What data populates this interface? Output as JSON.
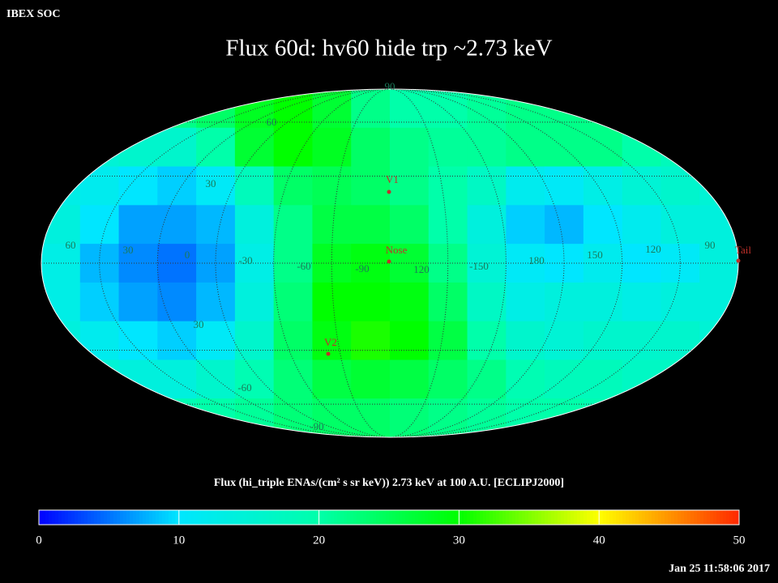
{
  "header": {
    "source": "IBEX SOC",
    "title": "Flux   60d: hv60 hide trp ~2.73 keV",
    "timestamp": "Jan 25 11:58:06 2017"
  },
  "map": {
    "grid_labels": [
      "90",
      "60",
      "30",
      "60",
      "30",
      "0",
      "-30",
      "-60",
      "-90",
      "120",
      "-150",
      "180",
      "150",
      "120",
      "90",
      "30",
      "-60",
      "-90"
    ],
    "markers": [
      "V1",
      "Nose",
      "V2",
      "Tail"
    ],
    "flux": [
      [
        20,
        20,
        20,
        22,
        24,
        28,
        30,
        27,
        22,
        20,
        20,
        21,
        22,
        22,
        22,
        21,
        20,
        20
      ],
      [
        15,
        15,
        16,
        16,
        20,
        27,
        30,
        28,
        24,
        22,
        21,
        21,
        22,
        22,
        22,
        20,
        18,
        18
      ],
      [
        13,
        12,
        10,
        9,
        11,
        18,
        24,
        25,
        24,
        22,
        20,
        17,
        12,
        11,
        13,
        15,
        16,
        15
      ],
      [
        14,
        10,
        7,
        7,
        8,
        14,
        22,
        26,
        26,
        24,
        20,
        14,
        9,
        8,
        10,
        12,
        14,
        14
      ],
      [
        13,
        8,
        6,
        5,
        7,
        13,
        22,
        28,
        29,
        27,
        22,
        15,
        11,
        10,
        12,
        10,
        11,
        14
      ],
      [
        13,
        9,
        7,
        6,
        8,
        14,
        23,
        30,
        30,
        29,
        24,
        17,
        13,
        14,
        14,
        13,
        14,
        14
      ],
      [
        14,
        12,
        10,
        9,
        11,
        16,
        24,
        29,
        31,
        30,
        26,
        20,
        16,
        15,
        16,
        16,
        16,
        15
      ],
      [
        16,
        15,
        14,
        14,
        16,
        19,
        23,
        26,
        27,
        26,
        24,
        22,
        19,
        18,
        18,
        17,
        17,
        16
      ],
      [
        18,
        18,
        18,
        19,
        20,
        21,
        23,
        24,
        24,
        23,
        22,
        21,
        20,
        20,
        19,
        19,
        18,
        18
      ]
    ]
  },
  "colorbar": {
    "label": "Flux (hi_triple ENAs/(cm² s sr keV))  2.73 keV at 100 A.U. [ECLIPJ2000]",
    "range": [
      0,
      50
    ],
    "ticks": [
      0,
      10,
      20,
      30,
      40,
      50
    ]
  }
}
